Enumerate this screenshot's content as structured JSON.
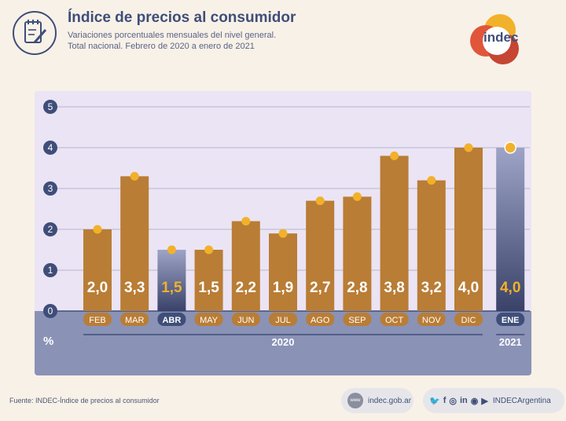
{
  "header": {
    "title": "Índice de precios al consumidor",
    "subtitle_line1": "Variaciones porcentuales mensuales del nivel general.",
    "subtitle_line2": "Total nacional. Febrero de 2020 a enero de 2021",
    "logo_text": "indec"
  },
  "chart_data": {
    "type": "bar",
    "categories": [
      "FEB",
      "MAR",
      "ABR",
      "MAY",
      "JUN",
      "JUL",
      "AGO",
      "SEP",
      "OCT",
      "NOV",
      "DIC",
      "ENE"
    ],
    "values": [
      2.0,
      3.3,
      1.5,
      1.5,
      2.2,
      1.9,
      2.7,
      2.8,
      3.8,
      3.2,
      4.0,
      4.0
    ],
    "value_labels": [
      "2,0",
      "3,3",
      "1,5",
      "1,5",
      "2,2",
      "1,9",
      "2,7",
      "2,8",
      "3,8",
      "3,2",
      "4,0",
      "4,0"
    ],
    "highlighted": [
      "ABR",
      "ENE"
    ],
    "ylim": [
      0,
      5
    ],
    "yticks": [
      "0",
      "1",
      "2",
      "3",
      "4",
      "5"
    ],
    "ylabel": "%",
    "year_groups": [
      {
        "label": "2020",
        "from": "FEB",
        "to": "DIC"
      },
      {
        "label": "2021",
        "from": "ENE",
        "to": "ENE"
      }
    ],
    "colors": {
      "bar": "#b97d35",
      "bar_highlight_top": "#9da4c7",
      "bar_highlight_bottom": "#3a4269",
      "dot": "#f2b12a",
      "plot_bg": "#ebe4f4",
      "below_zero_bg": "#8a92b6",
      "axis_dark": "#3f4e79"
    },
    "grid": true
  },
  "footer": {
    "source": "Fuente: INDEC-Índice de precios al consumidor",
    "website": "indec.gob.ar",
    "social_handle": "INDECArgentina",
    "globe_label": "www"
  }
}
